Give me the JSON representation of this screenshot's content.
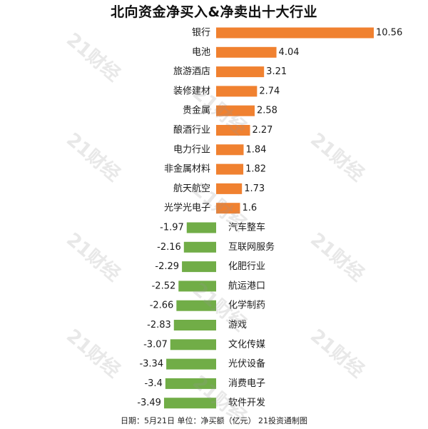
{
  "watermark": "21财经",
  "footer": "日期：5月21日 单位：净买额（亿元） 21投资通制图",
  "colors": {
    "positive": "#f08130",
    "negative": "#71ad47",
    "text": "#1a1a1a"
  },
  "chart_data": {
    "type": "bar",
    "orientation": "horizontal",
    "title": "北向资金净买入&净卖出十大行业",
    "unit": "亿元",
    "xlim": [
      -3.49,
      10.56
    ],
    "grid": false,
    "legend": "none",
    "categories": [
      "银行",
      "电池",
      "旅游酒店",
      "装修建材",
      "贵金属",
      "酿酒行业",
      "电力行业",
      "非金属材料",
      "航天航空",
      "光学光电子",
      "汽车整车",
      "互联网服务",
      "化肥行业",
      "航运港口",
      "化学制药",
      "游戏",
      "文化传媒",
      "光伏设备",
      "消费电子",
      "软件开发"
    ],
    "values": [
      10.56,
      4.04,
      3.21,
      2.74,
      2.58,
      2.27,
      1.84,
      1.82,
      1.73,
      1.6,
      -1.97,
      -2.16,
      -2.29,
      -2.52,
      -2.66,
      -2.83,
      -3.07,
      -3.34,
      -3.4,
      -3.49
    ]
  }
}
